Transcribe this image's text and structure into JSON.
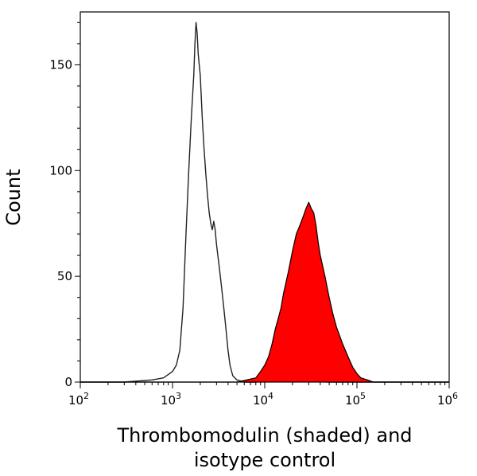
{
  "chart_data": {
    "type": "area",
    "title": "",
    "xlabel_lines": [
      "Thrombomodulin (shaded) and",
      "isotype control"
    ],
    "ylabel": "Count",
    "x_scale": "log",
    "xlim": [
      100,
      1000000
    ],
    "ylim": [
      0,
      175
    ],
    "x_ticks": [
      {
        "base": "10",
        "exp": "2"
      },
      {
        "base": "10",
        "exp": "3"
      },
      {
        "base": "10",
        "exp": "4"
      },
      {
        "base": "10",
        "exp": "5"
      },
      {
        "base": "10",
        "exp": "6"
      }
    ],
    "y_ticks": [
      0,
      50,
      100,
      150
    ],
    "series": [
      {
        "role": "isotype control",
        "style": "outline",
        "color": "#222222",
        "x": [
          100,
          300,
          600,
          800,
          1000,
          1100,
          1200,
          1300,
          1400,
          1500,
          1600,
          1700,
          1750,
          1800,
          1850,
          1900,
          1950,
          2000,
          2050,
          2100,
          2200,
          2300,
          2400,
          2500,
          2600,
          2700,
          2800,
          2900,
          3000,
          3200,
          3400,
          3600,
          3800,
          4000,
          4200,
          4500,
          5000,
          6000,
          8000,
          12000,
          50000,
          200000,
          1000000
        ],
        "y": [
          0,
          0,
          1,
          2,
          5,
          8,
          15,
          35,
          70,
          100,
          125,
          145,
          160,
          170,
          165,
          155,
          150,
          145,
          135,
          125,
          110,
          98,
          88,
          80,
          75,
          72,
          76,
          72,
          65,
          55,
          45,
          35,
          25,
          15,
          8,
          3,
          1,
          0,
          0,
          1,
          0,
          0,
          0
        ]
      },
      {
        "role": "Thrombomodulin",
        "style": "filled",
        "color": "#ff0000",
        "x": [
          100,
          5000,
          8000,
          9000,
          10000,
          11000,
          12000,
          13000,
          14000,
          15000,
          16000,
          18000,
          20000,
          22000,
          24000,
          26000,
          28000,
          30000,
          32000,
          34000,
          36000,
          38000,
          40000,
          45000,
          50000,
          55000,
          60000,
          70000,
          80000,
          90000,
          100000,
          110000,
          130000,
          150000,
          1000000
        ],
        "y": [
          0,
          0,
          2,
          5,
          8,
          12,
          18,
          25,
          30,
          35,
          42,
          52,
          62,
          70,
          74,
          78,
          82,
          85,
          82,
          80,
          74,
          66,
          60,
          50,
          40,
          32,
          26,
          18,
          12,
          7,
          4,
          2,
          1,
          0,
          0
        ]
      }
    ]
  }
}
